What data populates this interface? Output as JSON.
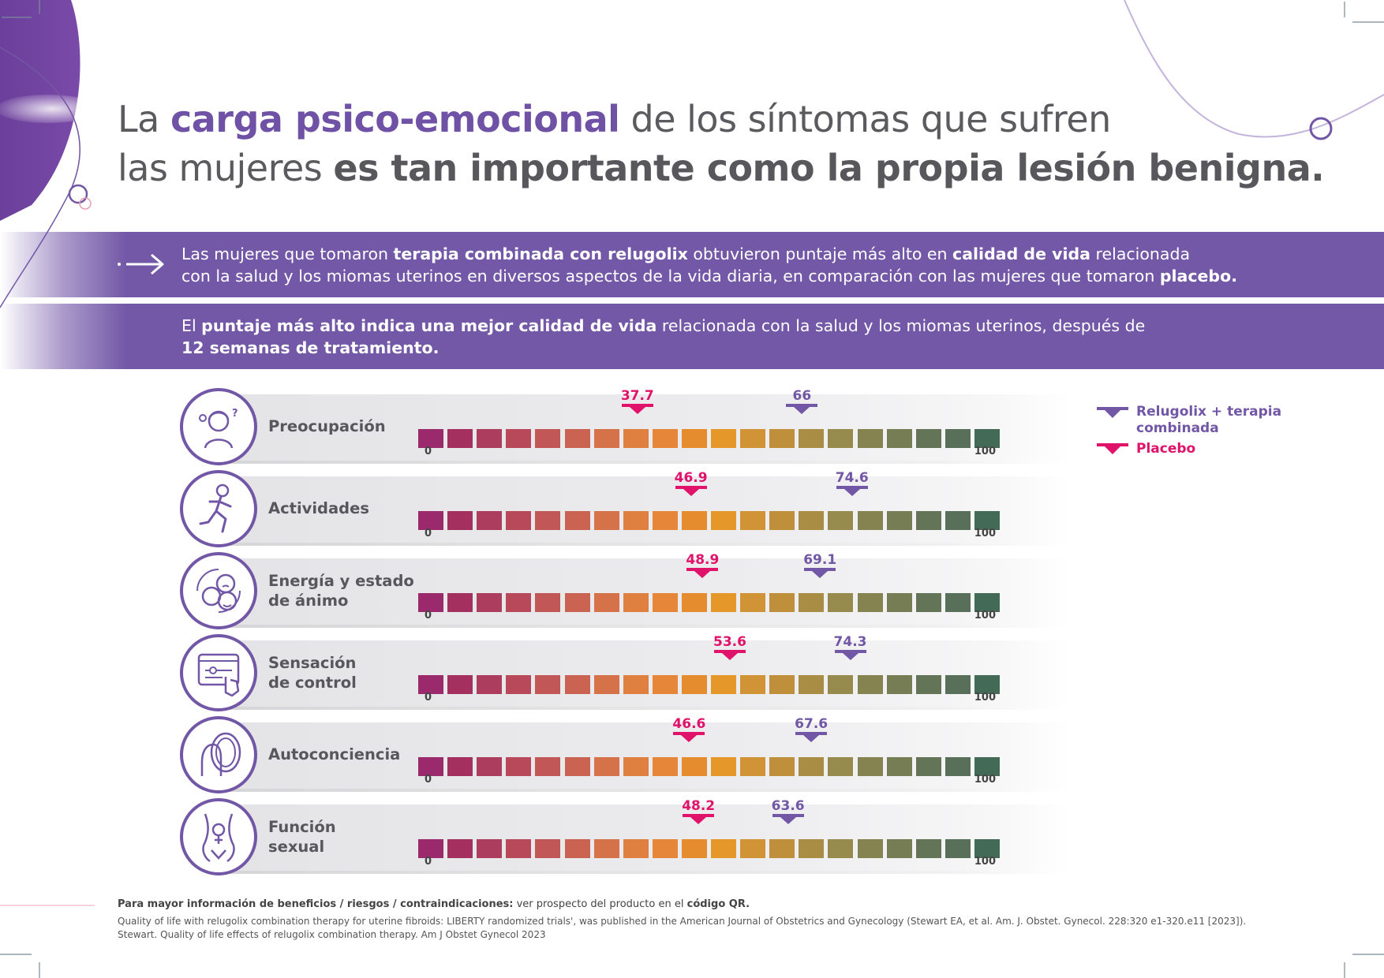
{
  "title": {
    "line1_pre": "La ",
    "line1_highlight": "carga psico-emocional",
    "line1_post": " de los síntomas que sufren",
    "line2_pre": "las mujeres ",
    "line2_bold": "es tan importante como la propia lesión benigna."
  },
  "banner1": {
    "t1": "Las mujeres que tomaron ",
    "b1": "terapia combinada con relugolix",
    "t2": " obtuvieron puntaje más alto en ",
    "b2": "calidad de vida",
    "t3": " relacionada",
    "t4": "con la salud y los miomas uterinos en diversos aspectos de la vida diaria, en comparación con las mujeres que tomaron ",
    "b3": "placebo."
  },
  "banner2": {
    "t1": "El ",
    "b1": "puntaje más alto indica una mejor calidad de vida",
    "t2": " relacionada con la salud y los miomas uterinos, después de",
    "b2": "12 semanas de tratamiento."
  },
  "colors": {
    "relugolix": "#7157a6",
    "placebo": "#e0126a",
    "segments": [
      "#9b2a6c",
      "#a3305f",
      "#ad3d5e",
      "#b8495b",
      "#c25758",
      "#cb6352",
      "#d5724a",
      "#df7f40",
      "#e58638",
      "#e58d2e",
      "#e6972a",
      "#d09336",
      "#c08f3c",
      "#a98d45",
      "#968a4c",
      "#858350",
      "#767c54",
      "#637556",
      "#586f59",
      "#436957"
    ]
  },
  "chart_data": {
    "type": "table",
    "scale_min": 0,
    "scale_max": 100,
    "tick_min_label": "0",
    "tick_max_label": "100",
    "series_names": [
      "Relugolix + terapia combinada",
      "Placebo"
    ],
    "rows": [
      {
        "category": "Preocupación",
        "label_lines": [
          "Preocupación"
        ],
        "placebo": 37.7,
        "placebo_label": "37.7",
        "relugolix": 66,
        "relugolix_label": "66",
        "icon": "worried-woman-icon"
      },
      {
        "category": "Actividades",
        "label_lines": [
          "Actividades"
        ],
        "placebo": 46.9,
        "placebo_label": "46.9",
        "relugolix": 74.6,
        "relugolix_label": "74.6",
        "icon": "running-woman-icon"
      },
      {
        "category": "Energía y estado de ánimo",
        "label_lines": [
          "Energía y estado",
          "de ánimo"
        ],
        "placebo": 48.9,
        "placebo_label": "48.9",
        "relugolix": 69.1,
        "relugolix_label": "69.1",
        "icon": "mood-faces-icon"
      },
      {
        "category": "Sensación de control",
        "label_lines": [
          "Sensación",
          "de control"
        ],
        "placebo": 53.6,
        "placebo_label": "53.6",
        "relugolix": 74.3,
        "relugolix_label": "74.3",
        "icon": "control-panel-icon"
      },
      {
        "category": "Autoconciencia",
        "label_lines": [
          "Autoconciencia"
        ],
        "placebo": 46.6,
        "placebo_label": "46.6",
        "relugolix": 67.6,
        "relugolix_label": "67.6",
        "icon": "mirror-icon"
      },
      {
        "category": "Función sexual",
        "label_lines": [
          "Función",
          "sexual"
        ],
        "placebo": 48.2,
        "placebo_label": "48.2",
        "relugolix": 63.6,
        "relugolix_label": "63.6",
        "icon": "female-body-icon"
      }
    ]
  },
  "legend": {
    "relugolix_line1": "Relugolix + terapia",
    "relugolix_line2": "combinada",
    "placebo": "Placebo"
  },
  "footer": {
    "b1": "Para mayor información de beneficios / riesgos / contraindicaciones:",
    "t1": " ver prospecto del producto en el ",
    "b2": "código QR.",
    "ref1": "Quality of life with relugolix combination therapy for uterine fibroids: LIBERTY randomized trials', was published in the American Journal of Obstetrics and Gynecology (Stewart EA, et al. Am. J. Obstet. Gynecol. 228:320 e1-320.e11 [2023]).",
    "ref2": "Stewart. Quality of life effects of relugolix combination therapy. Am J Obstet Gynecol 2023"
  }
}
